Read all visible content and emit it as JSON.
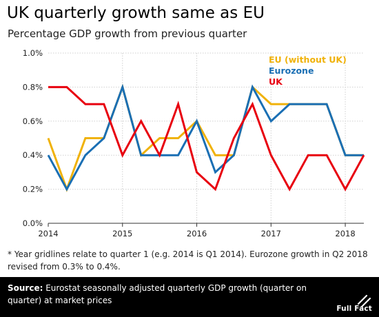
{
  "header": {
    "title": "UK quarterly growth same as EU",
    "subtitle": "Percentage GDP growth from previous quarter"
  },
  "chart_data": {
    "type": "line",
    "x": [
      "Q1 2014",
      "Q2 2014",
      "Q3 2014",
      "Q4 2014",
      "Q1 2015",
      "Q2 2015",
      "Q3 2015",
      "Q4 2015",
      "Q1 2016",
      "Q2 2016",
      "Q3 2016",
      "Q4 2016",
      "Q1 2017",
      "Q2 2017",
      "Q3 2017",
      "Q4 2017",
      "Q1 2018",
      "Q2 2018"
    ],
    "xticks": [
      "2014",
      "2015",
      "2016",
      "2017",
      "2018"
    ],
    "yticks": [
      "0.0%",
      "0.2%",
      "0.4%",
      "0.6%",
      "0.8%",
      "1.0%"
    ],
    "ylim": [
      0,
      1.0
    ],
    "grid": true,
    "legend_position": "top-right",
    "series": [
      {
        "name": "EU (without UK)",
        "color": "#f0b20a",
        "values": [
          0.5,
          0.2,
          0.5,
          0.5,
          0.8,
          0.4,
          0.5,
          0.5,
          0.6,
          0.4,
          0.4,
          0.8,
          0.7,
          0.7,
          0.7,
          0.7,
          0.4,
          0.4
        ]
      },
      {
        "name": "Eurozone",
        "color": "#1a6fb4",
        "values": [
          0.4,
          0.2,
          0.4,
          0.5,
          0.8,
          0.4,
          0.4,
          0.4,
          0.6,
          0.3,
          0.4,
          0.8,
          0.6,
          0.7,
          0.7,
          0.7,
          0.4,
          0.4
        ]
      },
      {
        "name": "UK",
        "color": "#e8000f",
        "values": [
          0.8,
          0.8,
          0.7,
          0.7,
          0.4,
          0.6,
          0.4,
          0.7,
          0.3,
          0.2,
          0.5,
          0.7,
          0.4,
          0.2,
          0.4,
          0.4,
          0.2,
          0.4
        ]
      }
    ]
  },
  "footnote": "* Year gridlines relate to quarter 1 (e.g. 2014 is Q1 2014). Eurozone growth in Q2 2018 revised from 0.3% to 0.4%.",
  "source": {
    "label": "Source:",
    "text": " Eurostat seasonally adjusted quarterly GDP growth (quarter on quarter) at market prices"
  },
  "logo": {
    "text": "Full Fact",
    "icon": "full-fact-logo-icon"
  }
}
